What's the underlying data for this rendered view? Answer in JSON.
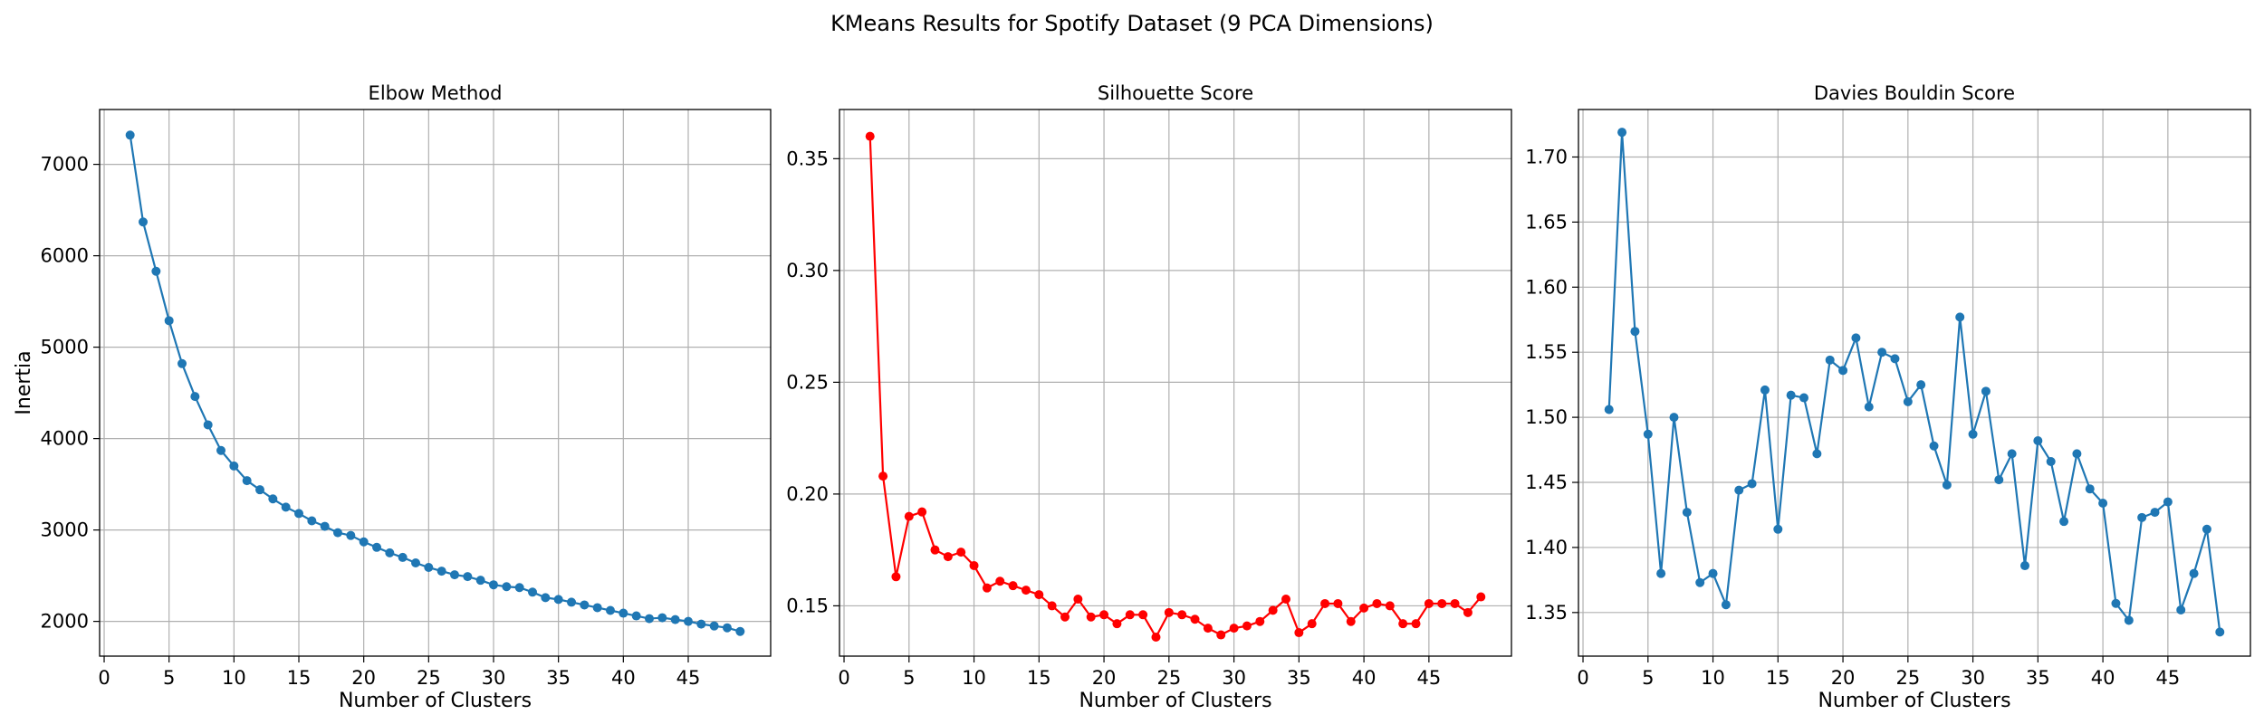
{
  "figure": {
    "suptitle": "KMeans Results for Spotify Dataset (9 PCA Dimensions)"
  },
  "chart_data": [
    {
      "type": "line",
      "title": "Elbow Method",
      "xlabel": "Number of Clusters",
      "ylabel": "Inertia",
      "grid": true,
      "xlim": [
        -0.35,
        51.35
      ],
      "ylim": [
        1620,
        7600
      ],
      "xticks": [
        0,
        5,
        10,
        15,
        20,
        25,
        30,
        35,
        40,
        45
      ],
      "yticks": [
        2000,
        3000,
        4000,
        5000,
        6000,
        7000
      ],
      "tick_format": "int",
      "color": "#1f77b4",
      "x": [
        2,
        3,
        4,
        5,
        6,
        7,
        8,
        9,
        10,
        11,
        12,
        13,
        14,
        15,
        16,
        17,
        18,
        19,
        20,
        21,
        22,
        23,
        24,
        25,
        26,
        27,
        28,
        29,
        30,
        31,
        32,
        33,
        34,
        35,
        36,
        37,
        38,
        39,
        40,
        41,
        42,
        43,
        44,
        45,
        46,
        47,
        48,
        49
      ],
      "values": [
        7320,
        6370,
        5830,
        5290,
        4820,
        4460,
        4150,
        3870,
        3700,
        3540,
        3440,
        3340,
        3250,
        3180,
        3100,
        3040,
        2970,
        2940,
        2870,
        2810,
        2750,
        2700,
        2640,
        2590,
        2550,
        2510,
        2490,
        2450,
        2400,
        2380,
        2370,
        2320,
        2260,
        2240,
        2210,
        2180,
        2150,
        2120,
        2090,
        2060,
        2030,
        2040,
        2020,
        2000,
        1970,
        1950,
        1930,
        1890
      ]
    },
    {
      "type": "line",
      "title": "Silhouette Score",
      "xlabel": "Number of Clusters",
      "ylabel": "",
      "grid": true,
      "xlim": [
        -0.35,
        51.35
      ],
      "ylim": [
        0.1275,
        0.372
      ],
      "xticks": [
        0,
        5,
        10,
        15,
        20,
        25,
        30,
        35,
        40,
        45
      ],
      "yticks": [
        0.15,
        0.2,
        0.25,
        0.3,
        0.35
      ],
      "tick_format": "2dp",
      "color": "#ff0000",
      "x": [
        2,
        3,
        4,
        5,
        6,
        7,
        8,
        9,
        10,
        11,
        12,
        13,
        14,
        15,
        16,
        17,
        18,
        19,
        20,
        21,
        22,
        23,
        24,
        25,
        26,
        27,
        28,
        29,
        30,
        31,
        32,
        33,
        34,
        35,
        36,
        37,
        38,
        39,
        40,
        41,
        42,
        43,
        44,
        45,
        46,
        47,
        48,
        49
      ],
      "values": [
        0.36,
        0.208,
        0.163,
        0.19,
        0.192,
        0.175,
        0.172,
        0.174,
        0.168,
        0.158,
        0.161,
        0.159,
        0.157,
        0.155,
        0.15,
        0.145,
        0.153,
        0.145,
        0.146,
        0.142,
        0.146,
        0.146,
        0.136,
        0.147,
        0.146,
        0.144,
        0.14,
        0.137,
        0.14,
        0.141,
        0.143,
        0.148,
        0.153,
        0.138,
        0.142,
        0.151,
        0.151,
        0.143,
        0.149,
        0.151,
        0.15,
        0.142,
        0.142,
        0.151,
        0.151,
        0.151,
        0.147,
        0.154
      ]
    },
    {
      "type": "line",
      "title": "Davies Bouldin Score",
      "xlabel": "Number of Clusters",
      "ylabel": "",
      "grid": true,
      "xlim": [
        -0.35,
        51.35
      ],
      "ylim": [
        1.3165,
        1.7365
      ],
      "xticks": [
        0,
        5,
        10,
        15,
        20,
        25,
        30,
        35,
        40,
        45
      ],
      "yticks": [
        1.35,
        1.4,
        1.45,
        1.5,
        1.55,
        1.6,
        1.65,
        1.7
      ],
      "tick_format": "2dp",
      "color": "#1f77b4",
      "x": [
        2,
        3,
        4,
        5,
        6,
        7,
        8,
        9,
        10,
        11,
        12,
        13,
        14,
        15,
        16,
        17,
        18,
        19,
        20,
        21,
        22,
        23,
        24,
        25,
        26,
        27,
        28,
        29,
        30,
        31,
        32,
        33,
        34,
        35,
        36,
        37,
        38,
        39,
        40,
        41,
        42,
        43,
        44,
        45,
        46,
        47,
        48,
        49
      ],
      "values": [
        1.506,
        1.719,
        1.566,
        1.487,
        1.38,
        1.5,
        1.427,
        1.373,
        1.38,
        1.356,
        1.444,
        1.449,
        1.521,
        1.414,
        1.517,
        1.515,
        1.472,
        1.544,
        1.536,
        1.561,
        1.508,
        1.55,
        1.545,
        1.512,
        1.525,
        1.478,
        1.448,
        1.577,
        1.487,
        1.52,
        1.452,
        1.472,
        1.386,
        1.482,
        1.466,
        1.42,
        1.472,
        1.445,
        1.434,
        1.357,
        1.344,
        1.423,
        1.427,
        1.435,
        1.352,
        1.38,
        1.414,
        1.335
      ]
    }
  ]
}
